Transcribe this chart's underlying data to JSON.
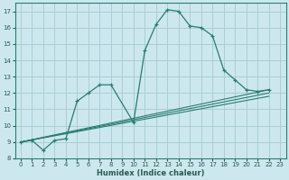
{
  "bg_color": "#cce8ee",
  "grid_color": "#aacdd5",
  "line_color": "#2a7d6e",
  "xlabel": "Humidex (Indice chaleur)",
  "xlim": [
    -0.5,
    23.5
  ],
  "ylim": [
    8,
    17.5
  ],
  "yticks": [
    8,
    9,
    10,
    11,
    12,
    13,
    14,
    15,
    16,
    17
  ],
  "xticks": [
    0,
    1,
    2,
    3,
    4,
    5,
    6,
    7,
    8,
    9,
    10,
    11,
    12,
    13,
    14,
    15,
    16,
    17,
    18,
    19,
    20,
    21,
    22,
    23
  ],
  "curve1": {
    "x": [
      0,
      1,
      2,
      3,
      4,
      5,
      6,
      7,
      8,
      10,
      11,
      12,
      13,
      14,
      15,
      16,
      17,
      18,
      19,
      20,
      21,
      22
    ],
    "y": [
      9.0,
      9.1,
      8.5,
      9.1,
      9.2,
      11.5,
      12.0,
      12.5,
      12.5,
      10.2,
      14.6,
      16.2,
      17.1,
      17.0,
      16.1,
      16.0,
      15.5,
      13.4,
      12.8,
      12.2,
      12.1,
      12.2
    ]
  },
  "trend_lines": [
    {
      "x": [
        0,
        22
      ],
      "y": [
        9.0,
        12.2
      ]
    },
    {
      "x": [
        0,
        22
      ],
      "y": [
        9.0,
        12.0
      ]
    },
    {
      "x": [
        0,
        22
      ],
      "y": [
        9.0,
        11.8
      ]
    }
  ],
  "tick_color": "#2a5a50",
  "xlabel_fontsize": 6,
  "tick_fontsize": 5
}
